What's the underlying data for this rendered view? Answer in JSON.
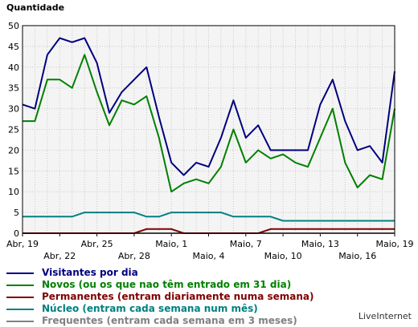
{
  "chart_data": {
    "type": "line",
    "title": "Quantidade",
    "xlabel": "",
    "ylabel": "",
    "ylim": [
      0,
      50
    ],
    "yticks": [
      0,
      5,
      10,
      15,
      20,
      25,
      30,
      35,
      40,
      45,
      50
    ],
    "grid": true,
    "legend_position": "bottom",
    "x": [
      "Abr, 19",
      "Abr, 20",
      "Abr, 21",
      "Abr, 22",
      "Abr, 23",
      "Abr, 24",
      "Abr, 25",
      "Abr, 26",
      "Abr, 27",
      "Abr, 28",
      "Abr, 29",
      "Abr, 30",
      "Maio, 1",
      "Maio, 2",
      "Maio, 3",
      "Maio, 4",
      "Maio, 5",
      "Maio, 6",
      "Maio, 7",
      "Maio, 8",
      "Maio, 9",
      "Maio, 10",
      "Maio, 11",
      "Maio, 12",
      "Maio, 13",
      "Maio, 14",
      "Maio, 15",
      "Maio, 16",
      "Maio, 17",
      "Maio, 18",
      "Maio, 19"
    ],
    "xtick_labels": [
      {
        "index": 0,
        "label": "Abr, 19",
        "row": 1
      },
      {
        "index": 3,
        "label": "Abr, 22",
        "row": 2
      },
      {
        "index": 6,
        "label": "Abr, 25",
        "row": 1
      },
      {
        "index": 9,
        "label": "Abr, 28",
        "row": 2
      },
      {
        "index": 12,
        "label": "Maio, 1",
        "row": 1
      },
      {
        "index": 15,
        "label": "Maio, 4",
        "row": 2
      },
      {
        "index": 18,
        "label": "Maio, 7",
        "row": 1
      },
      {
        "index": 21,
        "label": "Maio, 10",
        "row": 2
      },
      {
        "index": 24,
        "label": "Maio, 13",
        "row": 1
      },
      {
        "index": 27,
        "label": "Maio, 16",
        "row": 2
      },
      {
        "index": 30,
        "label": "Maio, 19",
        "row": 1
      }
    ],
    "series": [
      {
        "name": "Visitantes por dia",
        "color": "#000080",
        "values": [
          31,
          30,
          43,
          47,
          46,
          47,
          41,
          29,
          34,
          37,
          40,
          28,
          17,
          14,
          17,
          16,
          23,
          32,
          23,
          26,
          20,
          20,
          20,
          20,
          31,
          37,
          27,
          20,
          21,
          17,
          39
        ]
      },
      {
        "name": "Novos (ou os que nao têm entrado em 31 dia)",
        "color": "#008000",
        "values": [
          27,
          27,
          37,
          37,
          35,
          43,
          34,
          26,
          32,
          31,
          33,
          23,
          10,
          12,
          13,
          12,
          16,
          25,
          17,
          20,
          18,
          19,
          17,
          16,
          23,
          30,
          17,
          11,
          14,
          13,
          30
        ]
      },
      {
        "name": "Permanentes (entram diariamente numa semana)",
        "color": "#800000",
        "values": [
          0,
          0,
          0,
          0,
          0,
          0,
          0,
          0,
          0,
          0,
          1,
          1,
          1,
          0,
          0,
          0,
          0,
          0,
          0,
          0,
          1,
          1,
          1,
          1,
          1,
          1,
          1,
          1,
          1,
          1,
          1
        ]
      },
      {
        "name": "Núcleo (entram cada semana num mês)",
        "color": "#008080",
        "values": [
          4,
          4,
          4,
          4,
          4,
          5,
          5,
          5,
          5,
          5,
          4,
          4,
          5,
          5,
          5,
          5,
          5,
          4,
          4,
          4,
          4,
          3,
          3,
          3,
          3,
          3,
          3,
          3,
          3,
          3,
          3
        ]
      },
      {
        "name": "Frequentes (entram cada semana em 3 meses)",
        "color": "#808080",
        "values": [
          0,
          0,
          0,
          0,
          0,
          0,
          0,
          0,
          0,
          0,
          0,
          0,
          0,
          0,
          0,
          0,
          0,
          0,
          0,
          0,
          0,
          0,
          0,
          0,
          0,
          0,
          0,
          0,
          0,
          0,
          0
        ]
      }
    ]
  },
  "credit": "LiveInternet"
}
